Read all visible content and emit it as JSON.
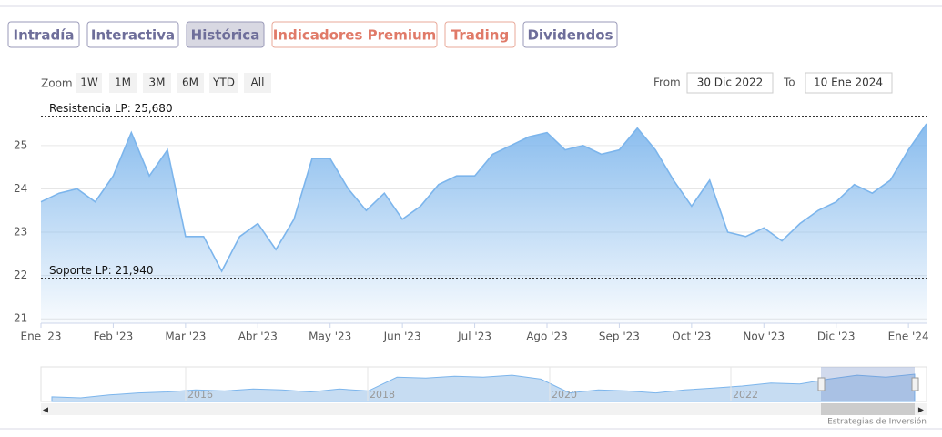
{
  "tabs": [
    "Intradía",
    "Interactiva",
    "Histórica",
    "Indicadores Premium",
    "Trading",
    "Dividendos"
  ],
  "zoom": {
    "label": "Zoom",
    "buttons": [
      "1W",
      "1M",
      "3M",
      "6M",
      "YTD",
      "All"
    ]
  },
  "range": {
    "from_label": "From",
    "from": "30 Dic 2022",
    "to_label": "To",
    "to": "10 Ene 2024"
  },
  "chart_data": {
    "type": "area",
    "categories": [
      "Ene '23",
      null,
      null,
      null,
      "Feb '23",
      null,
      null,
      null,
      "Mar '23",
      null,
      null,
      null,
      "Abr '23",
      null,
      null,
      null,
      "May '23",
      null,
      null,
      null,
      "Jun '23",
      null,
      null,
      null,
      "Jul '23",
      null,
      null,
      null,
      "Ago '23",
      null,
      null,
      null,
      "Sep '23",
      null,
      null,
      null,
      "Oct '23",
      null,
      null,
      null,
      "Nov '23",
      null,
      null,
      null,
      "Dic '23",
      null,
      null,
      null,
      "Ene '24",
      null
    ],
    "series": [
      {
        "color": "#7cb5ec",
        "values": [
          23.7,
          23.9,
          24.0,
          23.7,
          24.3,
          25.3,
          24.3,
          24.9,
          22.9,
          22.9,
          22.1,
          22.9,
          23.2,
          22.6,
          23.3,
          24.7,
          24.7,
          24.0,
          23.5,
          23.9,
          23.3,
          23.6,
          24.1,
          24.3,
          24.3,
          24.8,
          25.0,
          25.2,
          25.3,
          24.9,
          25.0,
          24.8,
          24.9,
          25.4,
          24.9,
          24.2,
          23.6,
          24.2,
          23.0,
          22.9,
          23.1,
          22.8,
          23.2,
          23.5,
          23.7,
          24.1,
          23.9,
          24.2,
          24.9,
          25.5
        ]
      }
    ],
    "ylim": [
      20.9,
      25.9
    ],
    "yticks": [
      21,
      22,
      23,
      24,
      25
    ],
    "grid": true,
    "plot_lines": [
      {
        "value": 25.68,
        "label": "Resistencia LP: 25,680"
      },
      {
        "value": 21.94,
        "label": "Soporte LP: 21,940"
      }
    ]
  },
  "navigator": {
    "labels": [
      "2016",
      "2018",
      "2020",
      "2022"
    ],
    "values": [
      21.2,
      21.1,
      21.4,
      21.6,
      21.7,
      21.9,
      21.8,
      22.0,
      21.9,
      21.7,
      22.0,
      21.8,
      23.2,
      23.1,
      23.3,
      23.2,
      23.4,
      23.0,
      21.6,
      21.9,
      21.8,
      21.6,
      21.9,
      22.1,
      22.3,
      22.6,
      22.5,
      23.0,
      23.4,
      23.2,
      23.5
    ]
  },
  "credit": "Estrategias de Inversión"
}
